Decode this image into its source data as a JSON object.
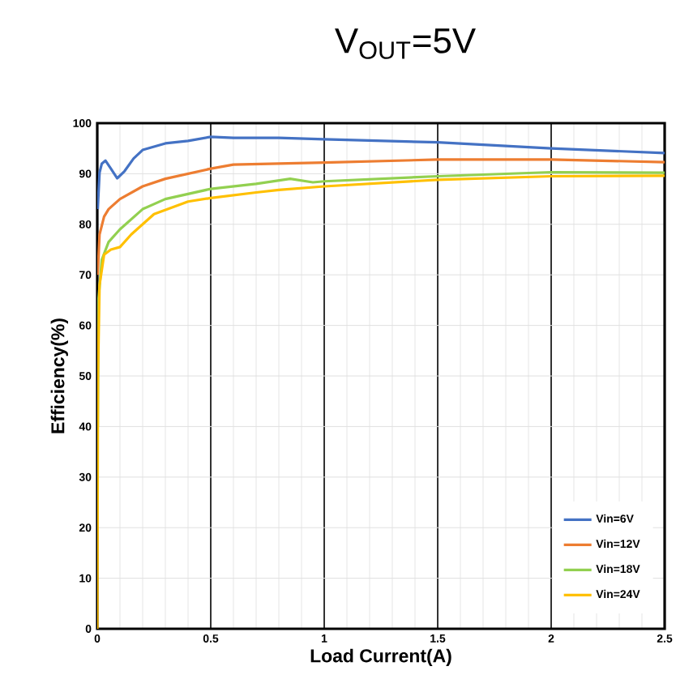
{
  "chart_data": {
    "type": "line",
    "title": "V$_{OUT}$=5V",
    "xlabel": "Load Current(A)",
    "ylabel": "Efficiency(%)",
    "xlim": [
      0,
      2.5
    ],
    "ylim": [
      0,
      100
    ],
    "xticks": [
      0,
      0.5,
      1,
      1.5,
      2,
      2.5
    ],
    "yticks": [
      0,
      10,
      20,
      30,
      40,
      50,
      60,
      70,
      80,
      90,
      100
    ],
    "grid": true,
    "legend": "bottom right",
    "marker": "none",
    "line_style": "solid",
    "series": [
      {
        "name": "Vin=6V",
        "color": "#4472c4",
        "x": [
          0.002,
          0.01,
          0.02,
          0.036,
          0.06,
          0.088,
          0.12,
          0.16,
          0.2,
          0.3,
          0.4,
          0.5,
          0.6,
          0.8,
          1.0,
          1.5,
          2.0,
          2.5
        ],
        "values": [
          83,
          90.2,
          92,
          92.6,
          91,
          89.1,
          90.5,
          93,
          94.7,
          96,
          96.5,
          97.3,
          97.1,
          97.1,
          96.8,
          96.2,
          95.0,
          94.1
        ]
      },
      {
        "name": "Vin=12V",
        "color": "#ed7d31",
        "x": [
          0.002,
          0.01,
          0.03,
          0.05,
          0.1,
          0.2,
          0.3,
          0.5,
          0.6,
          0.8,
          1.0,
          1.5,
          2.0,
          2.5
        ],
        "values": [
          70,
          78,
          81.5,
          83,
          85,
          87.5,
          89,
          91,
          91.8,
          92,
          92.2,
          92.8,
          92.8,
          92.3
        ]
      },
      {
        "name": "Vin=18V",
        "color": "#92d050",
        "x": [
          0.002,
          0.005,
          0.02,
          0.05,
          0.1,
          0.2,
          0.3,
          0.5,
          0.7,
          0.85,
          0.95,
          1.0,
          1.5,
          2.0,
          2.5
        ],
        "values": [
          40,
          65,
          73,
          76.5,
          79,
          83,
          85,
          87,
          88,
          89,
          88.3,
          88.5,
          89.5,
          90.3,
          90.2
        ]
      },
      {
        "name": "Vin=24V",
        "color": "#ffc000",
        "x": [
          0,
          0.003,
          0.01,
          0.03,
          0.06,
          0.1,
          0.15,
          0.25,
          0.4,
          0.5,
          0.7,
          0.8,
          1.0,
          1.5,
          2.0,
          2.5
        ],
        "values": [
          0,
          50,
          68,
          74,
          75,
          75.5,
          78,
          82,
          84.5,
          85.2,
          86.3,
          86.8,
          87.5,
          88.8,
          89.5,
          89.6
        ]
      }
    ]
  }
}
